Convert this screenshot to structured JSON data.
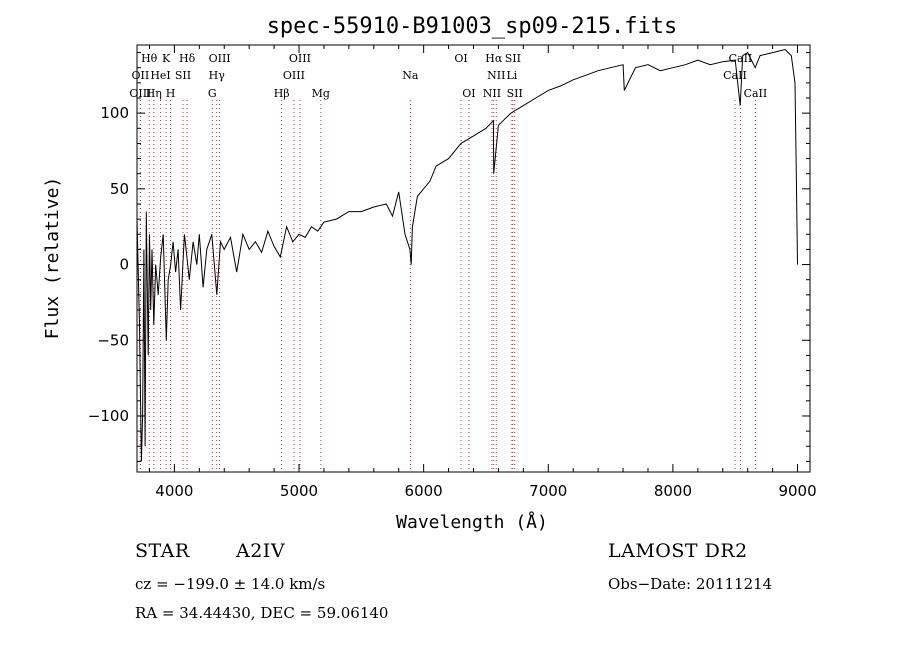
{
  "chart_data": {
    "type": "line",
    "title": "spec-55910-B91003_sp09-215.fits",
    "xlabel": "Wavelength (Å)",
    "ylabel": "Flux (relative)",
    "xlim": [
      3700,
      9100
    ],
    "ylim": [
      -137,
      145
    ],
    "xticks": [
      4000,
      5000,
      6000,
      7000,
      8000,
      9000
    ],
    "yticks": [
      -100,
      -50,
      0,
      50,
      100
    ],
    "grid": false,
    "line_color": "#000000",
    "marker_color": "#cc3333",
    "series": [
      {
        "x": [
          3700,
          3720,
          3735,
          3745,
          3755,
          3765,
          3775,
          3790,
          3800,
          3810,
          3820,
          3835,
          3850,
          3870,
          3890,
          3910,
          3935,
          3950,
          3970,
          3990,
          4010,
          4030,
          4050,
          4080,
          4100,
          4120,
          4150,
          4180,
          4200,
          4230,
          4260,
          4300,
          4340,
          4370,
          4400,
          4450,
          4500,
          4550,
          4600,
          4650,
          4700,
          4750,
          4800,
          4850,
          4900,
          4950,
          5000,
          5050,
          5100,
          5150,
          5200,
          5300,
          5400,
          5500,
          5600,
          5700,
          5750,
          5800,
          5850,
          5890,
          5900,
          5910,
          5950,
          6000,
          6050,
          6100,
          6200,
          6300,
          6400,
          6500,
          6560,
          6562,
          6600,
          6700,
          6800,
          6900,
          7000,
          7100,
          7200,
          7300,
          7400,
          7500,
          7600,
          7610,
          7700,
          7800,
          7900,
          8000,
          8100,
          8200,
          8300,
          8400,
          8500,
          8540,
          8560,
          8600,
          8660,
          8700,
          8800,
          8900,
          8950,
          8980,
          8990,
          9000
        ],
        "y": [
          30,
          -40,
          -130,
          -100,
          10,
          -120,
          35,
          -60,
          20,
          -30,
          10,
          -40,
          0,
          -20,
          5,
          20,
          -50,
          -10,
          0,
          15,
          -5,
          10,
          -30,
          20,
          5,
          -10,
          15,
          0,
          20,
          -15,
          10,
          20,
          -20,
          15,
          10,
          18,
          -5,
          20,
          10,
          15,
          8,
          22,
          12,
          5,
          25,
          15,
          20,
          18,
          25,
          22,
          28,
          30,
          35,
          35,
          38,
          40,
          32,
          48,
          20,
          10,
          0,
          25,
          45,
          50,
          55,
          65,
          70,
          80,
          85,
          90,
          95,
          60,
          92,
          100,
          105,
          110,
          115,
          118,
          122,
          125,
          128,
          130,
          132,
          115,
          130,
          132,
          128,
          130,
          132,
          135,
          132,
          134,
          135,
          105,
          138,
          140,
          130,
          138,
          140,
          142,
          138,
          120,
          60,
          0
        ]
      }
    ],
    "lines": [
      {
        "label": "Hθ",
        "wl": 3798,
        "row": 1
      },
      {
        "label": "OII",
        "wl": 3727,
        "row": 2
      },
      {
        "label": "OIII",
        "wl": 3727,
        "row": 3
      },
      {
        "label": "Hη",
        "wl": 3835,
        "row": 3
      },
      {
        "label": "K",
        "wl": 3934,
        "row": 1
      },
      {
        "label": "HeI",
        "wl": 3889,
        "row": 2
      },
      {
        "label": "SII",
        "wl": 4069,
        "row": 2
      },
      {
        "label": "H",
        "wl": 3969,
        "row": 3
      },
      {
        "label": "Hδ",
        "wl": 4102,
        "row": 1
      },
      {
        "label": "OIII",
        "wl": 4363,
        "row": 1
      },
      {
        "label": "Hγ",
        "wl": 4340,
        "row": 2
      },
      {
        "label": "G",
        "wl": 4304,
        "row": 3
      },
      {
        "label": "Hβ",
        "wl": 4861,
        "row": 3
      },
      {
        "label": "OIII",
        "wl": 5007,
        "row": 1
      },
      {
        "label": "OIII",
        "wl": 4959,
        "row": 2
      },
      {
        "label": "Mg",
        "wl": 5175,
        "row": 3
      },
      {
        "label": "Na",
        "wl": 5893,
        "row": 2
      },
      {
        "label": "OI",
        "wl": 6300,
        "row": 1
      },
      {
        "label": "OI",
        "wl": 6363,
        "row": 3
      },
      {
        "label": "Hα",
        "wl": 6563,
        "row": 1
      },
      {
        "label": "SII",
        "wl": 6716,
        "row": 1
      },
      {
        "label": "NII",
        "wl": 6583,
        "row": 2
      },
      {
        "label": "Li",
        "wl": 6708,
        "row": 2
      },
      {
        "label": "NII",
        "wl": 6548,
        "row": 3
      },
      {
        "label": "SII",
        "wl": 6731,
        "row": 3
      },
      {
        "label": "CaII",
        "wl": 8542,
        "row": 1
      },
      {
        "label": "CaII",
        "wl": 8498,
        "row": 2
      },
      {
        "label": "CaII",
        "wl": 8662,
        "row": 3
      }
    ]
  },
  "info": {
    "object_type": "STAR",
    "spectral_class": "A2IV",
    "survey": "LAMOST DR2",
    "cz": "cz = −199.0 ± 14.0 km/s",
    "obs_date": "Obs−Date: 20111214",
    "coords": "RA =  34.44430, DEC =  59.06140"
  }
}
